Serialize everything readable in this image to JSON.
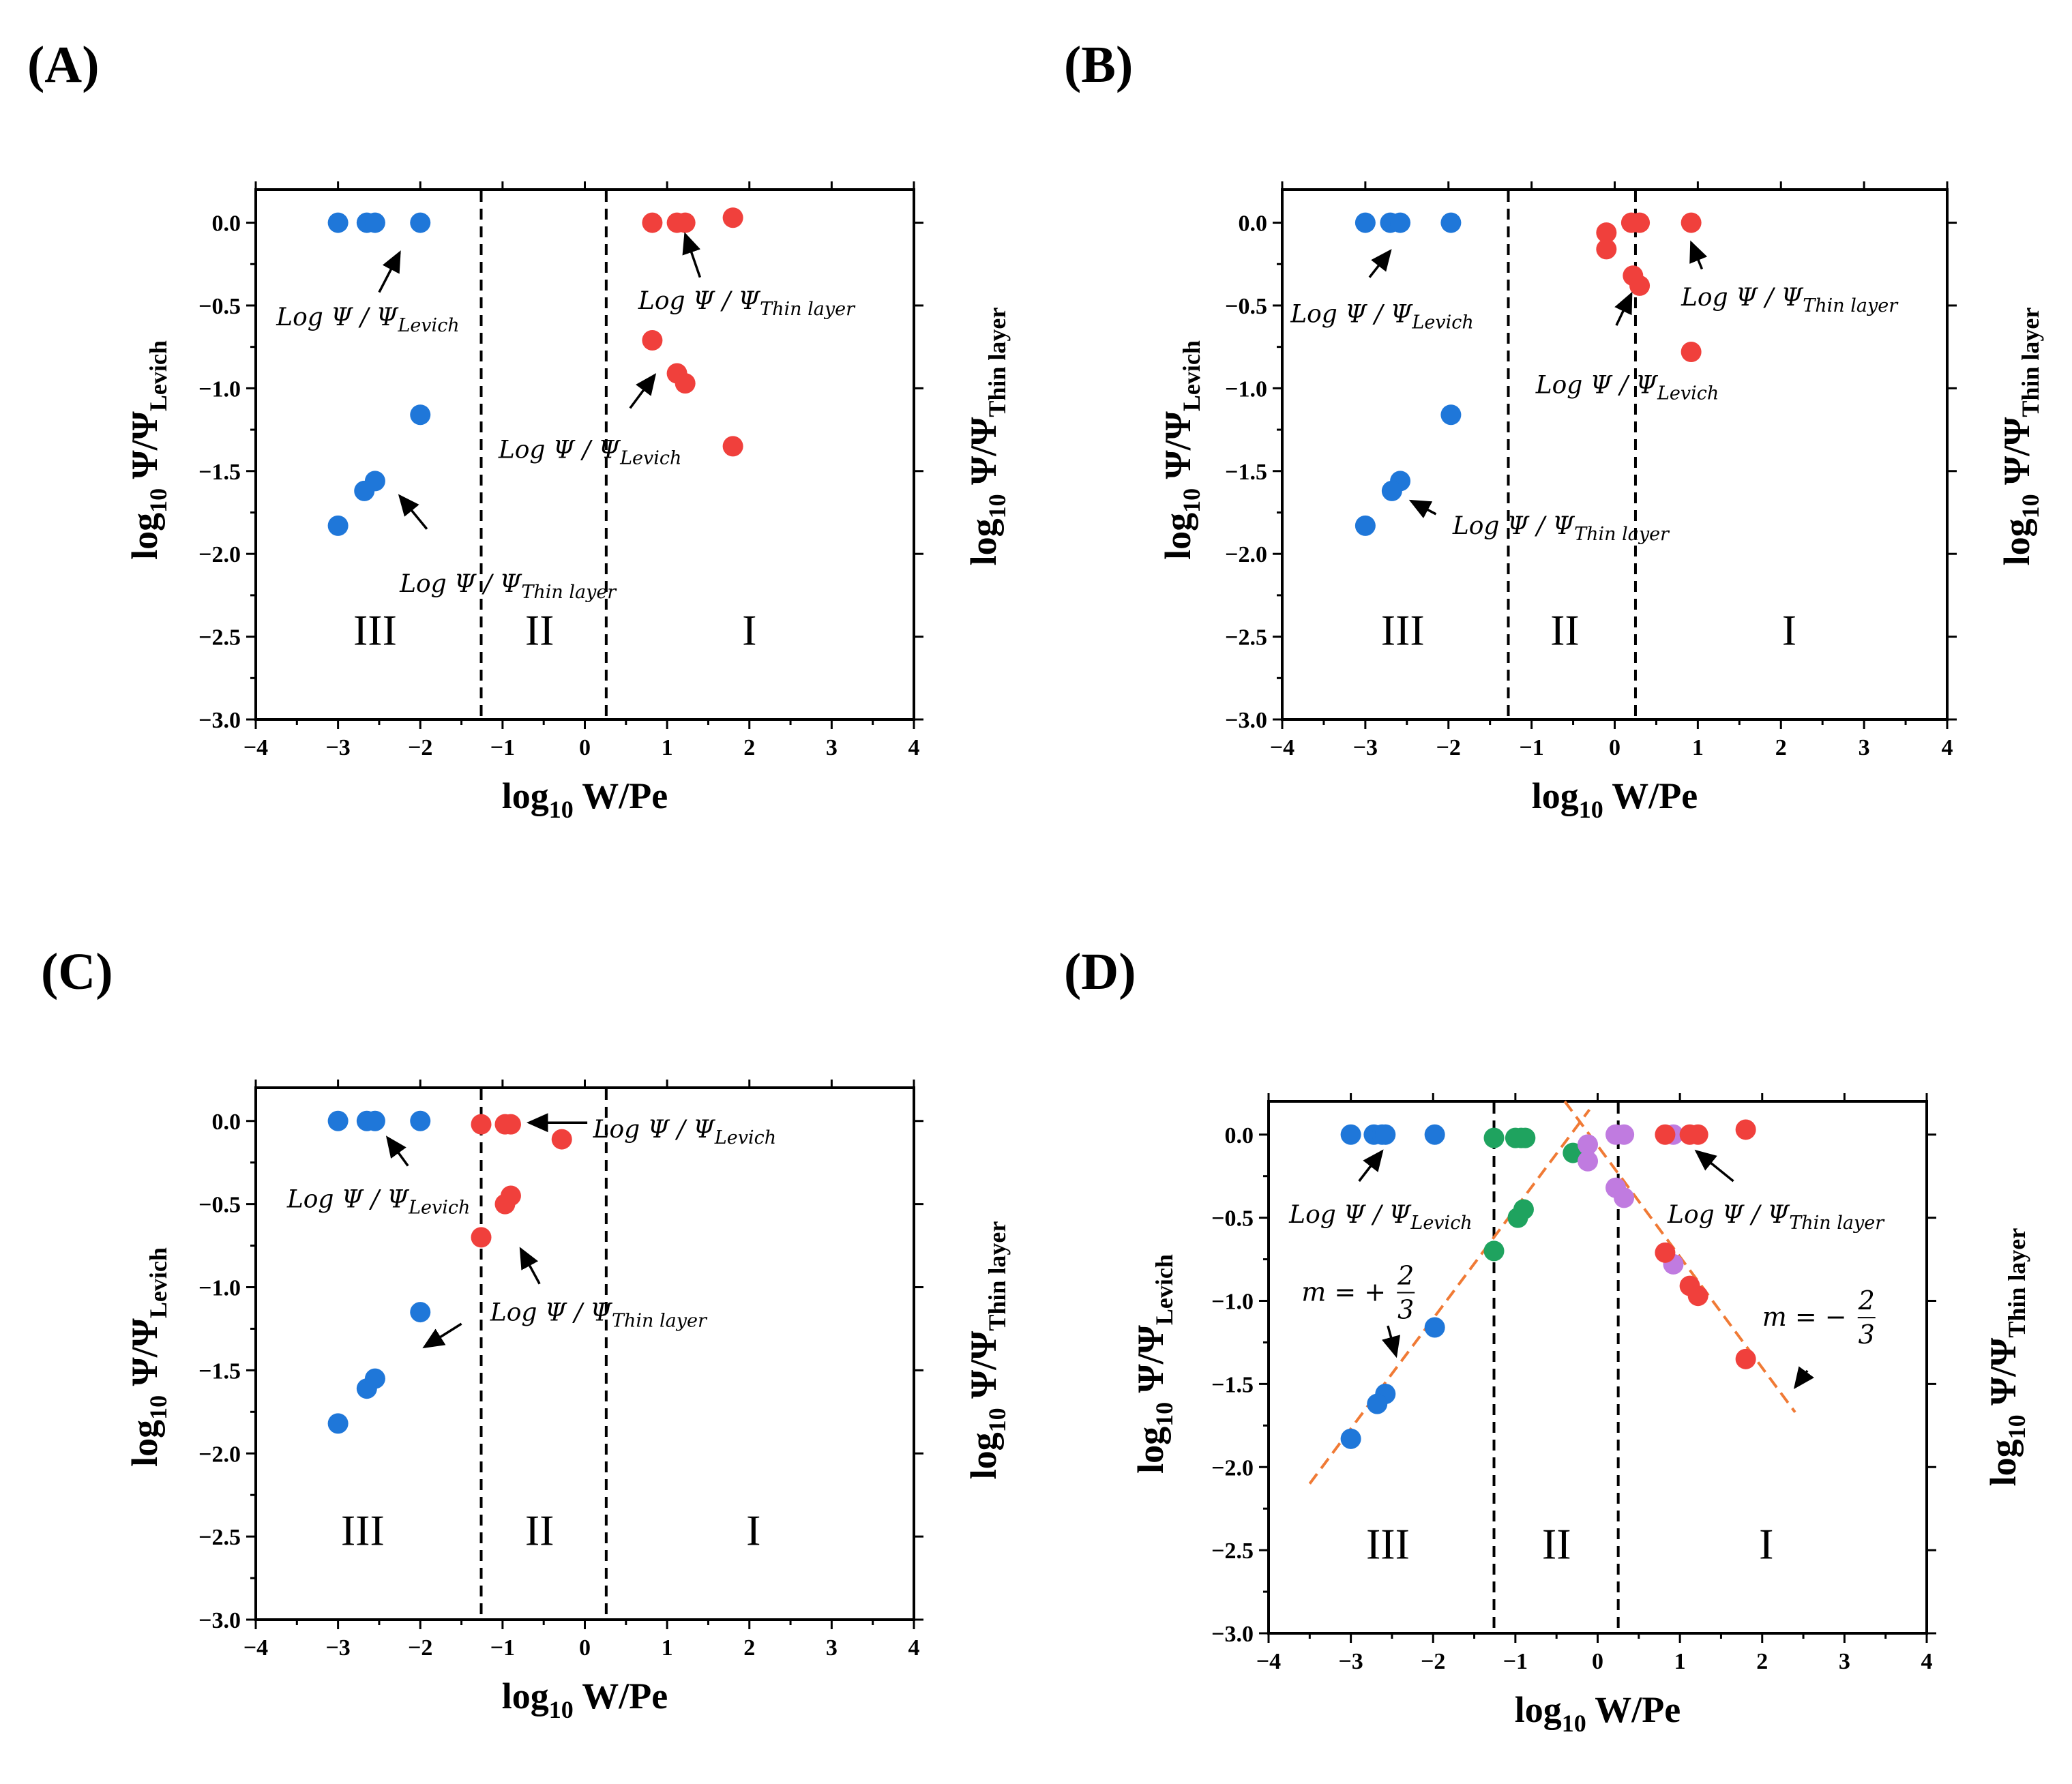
{
  "colors": {
    "blue": "#1f77d9",
    "red": "#f0403c",
    "green": "#1fa35f",
    "purple": "#c07be0",
    "fit": "#f07a35",
    "axis": "#000000"
  },
  "chart_data": [
    {
      "type": "scatter",
      "panel_label": "(A)",
      "xlabel_main": "log",
      "xlabel_sub": "10",
      "xlabel_rest": " W/Pe",
      "ylabel_main": "log",
      "ylabel_sub": "10",
      "ylabel_mid": " Ψ/Ψ",
      "ylabel_sub2": "Levich",
      "y2label_main": "log",
      "y2label_sub": "10",
      "y2label_mid": " Ψ/Ψ",
      "y2label_sub2": "Thin layer",
      "xlim": [
        -4,
        4
      ],
      "ylim": [
        -3.0,
        0.2
      ],
      "x_ticks": [
        "−4",
        "−3",
        "−2",
        "−1",
        "0",
        "1",
        "2",
        "3",
        "4"
      ],
      "y_ticks": [
        "0.0",
        "−0.5",
        "−1.0",
        "−1.5",
        "−2.0",
        "−2.5",
        "−3.0"
      ],
      "dividers": [
        -1.26,
        0.26
      ],
      "regions": [
        {
          "text": "III",
          "x": -2.55,
          "y": -2.55
        },
        {
          "text": "II",
          "x": -0.55,
          "y": -2.55
        },
        {
          "text": "I",
          "x": 2.0,
          "y": -2.55
        }
      ],
      "series": [
        {
          "name": "blue",
          "points": [
            [
              -3.0,
              0.0
            ],
            [
              -2.65,
              0.0
            ],
            [
              -2.55,
              0.0
            ],
            [
              -2.0,
              0.0
            ],
            [
              -2.0,
              -1.16
            ],
            [
              -2.55,
              -1.56
            ],
            [
              -2.68,
              -1.62
            ],
            [
              -3.0,
              -1.83
            ]
          ]
        },
        {
          "name": "red",
          "points": [
            [
              0.82,
              0.0
            ],
            [
              1.12,
              0.0
            ],
            [
              1.22,
              0.0
            ],
            [
              1.8,
              0.03
            ],
            [
              0.82,
              -0.71
            ],
            [
              1.12,
              -0.91
            ],
            [
              1.22,
              -0.97
            ],
            [
              1.8,
              -1.35
            ]
          ]
        }
      ],
      "annotations": [
        {
          "base": "Log Ψ / Ψ",
          "sub": "Levich",
          "tx": -3.75,
          "ty": -0.62,
          "ax1": -2.5,
          "ay1": -0.42,
          "ax2": -2.25,
          "ay2": -0.18
        },
        {
          "base": "Log Ψ / Ψ",
          "sub": "Thin layer",
          "tx": 0.65,
          "ty": -0.52,
          "ax1": 1.4,
          "ay1": -0.33,
          "ax2": 1.22,
          "ay2": -0.07
        },
        {
          "base": "Log Ψ / Ψ",
          "sub": "Levich",
          "tx": -1.05,
          "ty": -1.42,
          "ax1": 0.55,
          "ay1": -1.12,
          "ax2": 0.85,
          "ay2": -0.92
        },
        {
          "base": "Log Ψ / Ψ",
          "sub": "Thin layer",
          "tx": -2.25,
          "ty": -2.23,
          "ax1": -1.92,
          "ay1": -1.85,
          "ax2": -2.25,
          "ay2": -1.65
        }
      ],
      "fit_lines": []
    },
    {
      "type": "scatter",
      "panel_label": "(B)",
      "xlabel_main": "log",
      "xlabel_sub": "10",
      "xlabel_rest": " W/Pe",
      "ylabel_main": "log",
      "ylabel_sub": "10",
      "ylabel_mid": " Ψ/Ψ",
      "ylabel_sub2": "Levich",
      "y2label_main": "log",
      "y2label_sub": "10",
      "y2label_mid": " Ψ/Ψ",
      "y2label_sub2": "Thin layer",
      "xlim": [
        -4,
        4
      ],
      "ylim": [
        -3.0,
        0.2
      ],
      "x_ticks": [
        "−4",
        "−3",
        "−2",
        "−1",
        "0",
        "1",
        "2",
        "3",
        "4"
      ],
      "y_ticks": [
        "0.0",
        "−0.5",
        "−1.0",
        "−1.5",
        "−2.0",
        "−2.5",
        "−3.0"
      ],
      "dividers": [
        -1.28,
        0.25
      ],
      "regions": [
        {
          "text": "III",
          "x": -2.55,
          "y": -2.55
        },
        {
          "text": "II",
          "x": -0.6,
          "y": -2.55
        },
        {
          "text": "I",
          "x": 2.1,
          "y": -2.55
        }
      ],
      "series": [
        {
          "name": "blue",
          "points": [
            [
              -3.0,
              0.0
            ],
            [
              -2.7,
              0.0
            ],
            [
              -2.58,
              0.0
            ],
            [
              -1.97,
              0.0
            ],
            [
              -1.97,
              -1.16
            ],
            [
              -2.58,
              -1.56
            ],
            [
              -2.68,
              -1.62
            ],
            [
              -3.0,
              -1.83
            ]
          ]
        },
        {
          "name": "red",
          "points": [
            [
              -0.1,
              -0.06
            ],
            [
              -0.1,
              -0.16
            ],
            [
              0.2,
              0.0
            ],
            [
              0.3,
              0.0
            ],
            [
              0.92,
              0.0
            ],
            [
              0.22,
              -0.32
            ],
            [
              0.3,
              -0.38
            ],
            [
              0.92,
              -0.78
            ]
          ]
        }
      ],
      "annotations": [
        {
          "base": "Log Ψ / Ψ",
          "sub": "Levich",
          "tx": -3.9,
          "ty": -0.6,
          "ax1": -2.95,
          "ay1": -0.33,
          "ax2": -2.7,
          "ay2": -0.17
        },
        {
          "base": "Log Ψ / Ψ",
          "sub": "Thin layer",
          "tx": 0.8,
          "ty": -0.5,
          "ax1": 1.05,
          "ay1": -0.28,
          "ax2": 0.92,
          "ay2": -0.12
        },
        {
          "base": "Log Ψ / Ψ",
          "sub": "Levich",
          "tx": -0.95,
          "ty": -1.03,
          "ax1": 0.02,
          "ay1": -0.62,
          "ax2": 0.2,
          "ay2": -0.43
        },
        {
          "base": "Log Ψ / Ψ",
          "sub": "Thin layer",
          "tx": -1.95,
          "ty": -1.88,
          "ax1": -2.15,
          "ay1": -1.76,
          "ax2": -2.45,
          "ay2": -1.68
        }
      ],
      "fit_lines": []
    },
    {
      "type": "scatter",
      "panel_label": "(C)",
      "xlabel_main": "log",
      "xlabel_sub": "10",
      "xlabel_rest": " W/Pe",
      "ylabel_main": "log",
      "ylabel_sub": "10",
      "ylabel_mid": " Ψ/Ψ",
      "ylabel_sub2": "Levich",
      "y2label_main": "log",
      "y2label_sub": "10",
      "y2label_mid": " Ψ/Ψ",
      "y2label_sub2": "Thin layer",
      "xlim": [
        -4,
        4
      ],
      "ylim": [
        -3.0,
        0.2
      ],
      "x_ticks": [
        "−4",
        "−3",
        "−2",
        "−1",
        "0",
        "1",
        "2",
        "3",
        "4"
      ],
      "y_ticks": [
        "0.0",
        "−0.5",
        "−1.0",
        "−1.5",
        "−2.0",
        "−2.5",
        "−3.0"
      ],
      "dividers": [
        -1.26,
        0.26
      ],
      "regions": [
        {
          "text": "III",
          "x": -2.7,
          "y": -2.55
        },
        {
          "text": "II",
          "x": -0.55,
          "y": -2.55
        },
        {
          "text": "I",
          "x": 2.05,
          "y": -2.55
        }
      ],
      "series": [
        {
          "name": "blue",
          "points": [
            [
              -3.0,
              0.0
            ],
            [
              -2.65,
              0.0
            ],
            [
              -2.55,
              0.0
            ],
            [
              -2.0,
              0.0
            ],
            [
              -2.0,
              -1.15
            ],
            [
              -2.55,
              -1.55
            ],
            [
              -2.65,
              -1.61
            ],
            [
              -3.0,
              -1.82
            ]
          ]
        },
        {
          "name": "red",
          "points": [
            [
              -1.26,
              -0.02
            ],
            [
              -0.97,
              -0.02
            ],
            [
              -0.9,
              -0.02
            ],
            [
              -0.28,
              -0.11
            ],
            [
              -1.26,
              -0.7
            ],
            [
              -0.97,
              -0.5
            ],
            [
              -0.9,
              -0.45
            ]
          ]
        }
      ],
      "annotations": [
        {
          "base": "Log Ψ / Ψ",
          "sub": "Levich",
          "tx": 0.1,
          "ty": -0.1,
          "ax1": 0.03,
          "ay1": -0.01,
          "ax2": -0.68,
          "ay2": -0.01
        },
        {
          "base": "Log Ψ / Ψ",
          "sub": "Levich",
          "tx": -3.62,
          "ty": -0.52,
          "ax1": -2.15,
          "ay1": -0.27,
          "ax2": -2.4,
          "ay2": -0.1
        },
        {
          "base": "Log Ψ / Ψ",
          "sub": "Thin layer",
          "tx": -1.15,
          "ty": -1.2,
          "ax1": -0.55,
          "ay1": -0.98,
          "ax2": -0.78,
          "ay2": -0.77
        },
        {
          "base": "",
          "sub": "",
          "tx": 0,
          "ty": 0,
          "ax1": -1.5,
          "ay1": -1.22,
          "ax2": -1.95,
          "ay2": -1.36
        }
      ],
      "fit_lines": []
    },
    {
      "type": "scatter",
      "panel_label": "(D)",
      "xlabel_main": "log",
      "xlabel_sub": "10",
      "xlabel_rest": " W/Pe",
      "ylabel_main": "log",
      "ylabel_sub": "10",
      "ylabel_mid": " Ψ/Ψ",
      "ylabel_sub2": "Levich",
      "y2label_main": "log",
      "y2label_sub": "10",
      "y2label_mid": " Ψ/Ψ",
      "y2label_sub2": "Thin layer",
      "xlim": [
        -4,
        4
      ],
      "ylim": [
        -3.0,
        0.2
      ],
      "x_ticks": [
        "−4",
        "−3",
        "−2",
        "−1",
        "0",
        "1",
        "2",
        "3",
        "4"
      ],
      "y_ticks": [
        "0.0",
        "−0.5",
        "−1.0",
        "−1.5",
        "−2.0",
        "−2.5",
        "−3.0"
      ],
      "dividers": [
        -1.26,
        0.25
      ],
      "regions": [
        {
          "text": "III",
          "x": -2.55,
          "y": -2.55
        },
        {
          "text": "II",
          "x": -0.5,
          "y": -2.55
        },
        {
          "text": "I",
          "x": 2.05,
          "y": -2.55
        }
      ],
      "series": [
        {
          "name": "blue",
          "points": [
            [
              -3.0,
              0.0
            ],
            [
              -2.72,
              0.0
            ],
            [
              -2.62,
              0.0
            ],
            [
              -2.58,
              0.0
            ],
            [
              -1.98,
              0.0
            ],
            [
              -1.98,
              -1.16
            ],
            [
              -2.58,
              -1.56
            ],
            [
              -2.68,
              -1.62
            ],
            [
              -3.0,
              -1.83
            ]
          ]
        },
        {
          "name": "green",
          "points": [
            [
              -1.26,
              -0.02
            ],
            [
              -1.0,
              -0.02
            ],
            [
              -0.93,
              -0.02
            ],
            [
              -0.88,
              -0.02
            ],
            [
              -0.3,
              -0.11
            ],
            [
              -1.26,
              -0.7
            ],
            [
              -0.97,
              -0.5
            ],
            [
              -0.9,
              -0.45
            ]
          ]
        },
        {
          "name": "purple",
          "points": [
            [
              -0.12,
              -0.06
            ],
            [
              -0.12,
              -0.16
            ],
            [
              0.22,
              0.0
            ],
            [
              0.32,
              0.0
            ],
            [
              0.92,
              0.0
            ],
            [
              0.22,
              -0.32
            ],
            [
              0.32,
              -0.38
            ],
            [
              0.92,
              -0.78
            ]
          ]
        },
        {
          "name": "red",
          "points": [
            [
              0.82,
              0.0
            ],
            [
              1.12,
              0.0
            ],
            [
              1.22,
              0.0
            ],
            [
              1.8,
              0.03
            ],
            [
              0.82,
              -0.71
            ],
            [
              1.12,
              -0.91
            ],
            [
              1.22,
              -0.97
            ],
            [
              1.8,
              -1.35
            ]
          ]
        }
      ],
      "annotations": [
        {
          "base": "Log Ψ / Ψ",
          "sub": "Levich",
          "tx": -3.75,
          "ty": -0.53,
          "ax1": -2.9,
          "ay1": -0.28,
          "ax2": -2.62,
          "ay2": -0.1
        },
        {
          "base": "Log Ψ / Ψ",
          "sub": "Thin layer",
          "tx": 0.85,
          "ty": -0.53,
          "ax1": 1.65,
          "ay1": -0.28,
          "ax2": 1.2,
          "ay2": -0.1
        },
        {
          "base": "",
          "sub": "",
          "tx": 0,
          "ty": 0,
          "ax1": -2.55,
          "ay1": -1.15,
          "ax2": -2.45,
          "ay2": -1.33
        },
        {
          "base": "",
          "sub": "",
          "tx": 0,
          "ty": 0,
          "ax1": 2.55,
          "ay1": -1.42,
          "ax2": 2.4,
          "ay2": -1.52
        }
      ],
      "slope_labels": [
        {
          "prefix": "m = +",
          "num": "2",
          "den": "3",
          "x": -3.6,
          "y": -1.0
        },
        {
          "prefix": "m = −",
          "num": "2",
          "den": "3",
          "x": 2.0,
          "y": -1.15
        }
      ],
      "fit_lines": [
        {
          "x": [
            -3.5,
            -0.1
          ],
          "y": [
            -2.1,
            0.15
          ]
        },
        {
          "x": [
            -0.4,
            2.4
          ],
          "y": [
            0.2,
            -1.67
          ]
        }
      ]
    }
  ]
}
